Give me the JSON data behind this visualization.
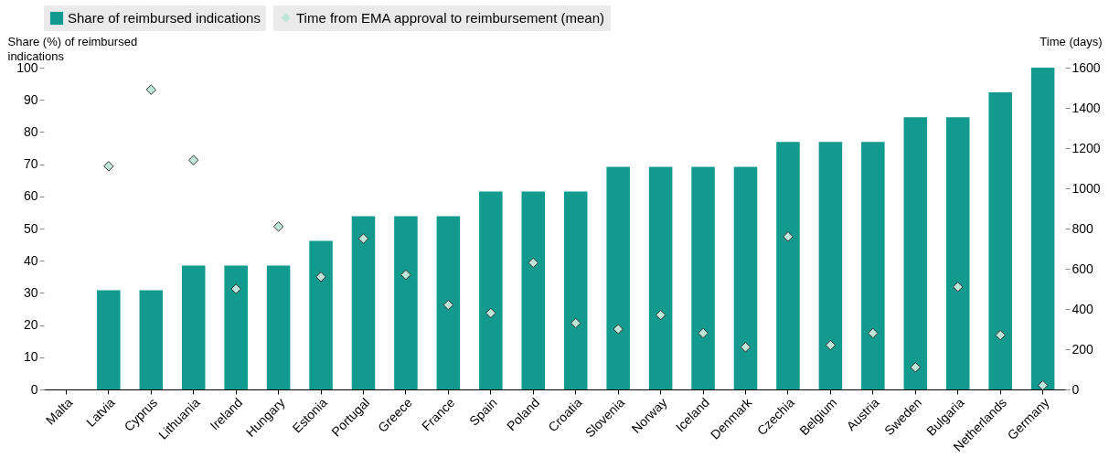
{
  "chart_data": {
    "type": "bar",
    "categories": [
      "Malta",
      "Latvia",
      "Cyprus",
      "Lithuania",
      "Ireland",
      "Hungary",
      "Estonia",
      "Portugal",
      "Greece",
      "France",
      "Spain",
      "Poland",
      "Croatia",
      "Slovenia",
      "Norway",
      "Iceland",
      "Denmark",
      "Czechia",
      "Belgium",
      "Austria",
      "Sweden",
      "Bulgaria",
      "Netherlands",
      "Germany"
    ],
    "series": [
      {
        "name": "Share of reimbursed indications",
        "color": "#139a8f",
        "values": [
          0,
          30.8,
          30.8,
          38.5,
          38.5,
          38.5,
          46.2,
          53.8,
          53.8,
          53.8,
          61.5,
          61.5,
          61.5,
          69.2,
          69.2,
          69.2,
          69.2,
          76.9,
          76.9,
          76.9,
          84.6,
          84.6,
          92.3,
          100
        ]
      },
      {
        "name": "Time from EMA approval to reimbursement (mean)",
        "type": "scatter",
        "axis": "y2",
        "marker": "diamond",
        "color": "#bfe5d9",
        "values": [
          null,
          1110,
          1490,
          1140,
          500,
          810,
          560,
          750,
          570,
          420,
          380,
          630,
          330,
          300,
          370,
          280,
          210,
          760,
          220,
          280,
          110,
          510,
          270,
          20
        ]
      }
    ],
    "ylabel": "Share (%) of reimbursed indications",
    "y2label": "Time (days)",
    "ylim": [
      0,
      100
    ],
    "yticks": [
      0,
      10,
      20,
      30,
      40,
      50,
      60,
      70,
      80,
      90,
      100
    ],
    "y2lim": [
      0,
      1600
    ],
    "y2ticks": [
      0,
      200,
      400,
      600,
      800,
      1000,
      1200,
      1400,
      1600
    ],
    "legend": "top",
    "grid": false
  }
}
